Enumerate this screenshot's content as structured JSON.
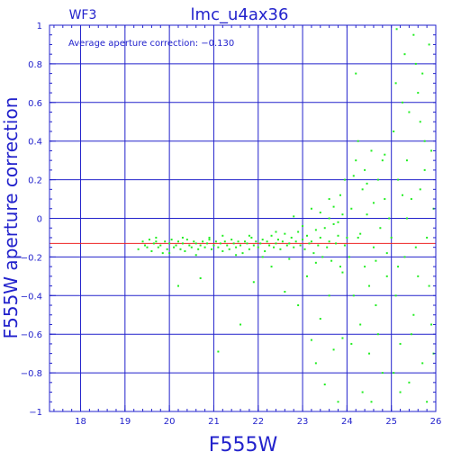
{
  "chart_data": {
    "type": "scatter",
    "title": "lmc_u4ax36",
    "chip_label": "WF3",
    "annotation": "Average aperture correction: −0.130",
    "xlabel": "F555W",
    "ylabel": "F555W aperture correction",
    "xlim": [
      17.3,
      26.0
    ],
    "ylim": [
      -1.0,
      1.0
    ],
    "x_ticks": [
      18,
      19,
      20,
      21,
      22,
      23,
      24,
      25,
      26
    ],
    "x_tick_labels": [
      "18",
      "19",
      "20",
      "21",
      "22",
      "23",
      "24",
      "25",
      "26"
    ],
    "y_ticks": [
      -1,
      -0.8,
      -0.6,
      -0.4,
      -0.2,
      0,
      0.2,
      0.4,
      0.6,
      0.8,
      1
    ],
    "y_tick_labels": [
      "−1",
      "−0.8",
      "−0.6",
      "−0.4",
      "−0.2",
      "0",
      "0.2",
      "0.4",
      "0.6",
      "0.8",
      "1"
    ],
    "grid": true,
    "average_line": -0.13,
    "colors": {
      "frame": "#2222cc",
      "grid": "#2222cc",
      "points": "#22ee22",
      "average_line": "#ee2222",
      "text": "#2222cc"
    },
    "series": [
      {
        "values": [
          [
            19.3,
            -0.16
          ],
          [
            19.4,
            -0.12
          ],
          [
            19.45,
            -0.14
          ],
          [
            19.5,
            -0.15
          ],
          [
            19.55,
            -0.11
          ],
          [
            19.6,
            -0.17
          ],
          [
            19.65,
            -0.13
          ],
          [
            19.7,
            -0.12
          ],
          [
            19.75,
            -0.15
          ],
          [
            19.8,
            -0.14
          ],
          [
            19.85,
            -0.18
          ],
          [
            19.9,
            -0.12
          ],
          [
            19.95,
            -0.16
          ],
          [
            20.0,
            -0.13
          ],
          [
            20.05,
            -0.11
          ],
          [
            20.1,
            -0.15
          ],
          [
            20.15,
            -0.14
          ],
          [
            20.2,
            -0.12
          ],
          [
            20.25,
            -0.16
          ],
          [
            20.3,
            -0.13
          ],
          [
            20.35,
            -0.17
          ],
          [
            20.4,
            -0.11
          ],
          [
            20.45,
            -0.14
          ],
          [
            20.5,
            -0.15
          ],
          [
            20.55,
            -0.12
          ],
          [
            20.6,
            -0.13
          ],
          [
            20.65,
            -0.16
          ],
          [
            20.7,
            -0.14
          ],
          [
            20.75,
            -0.12
          ],
          [
            20.8,
            -0.15
          ],
          [
            20.85,
            -0.13
          ],
          [
            20.9,
            -0.11
          ],
          [
            20.95,
            -0.16
          ],
          [
            21.0,
            -0.14
          ],
          [
            21.05,
            -0.12
          ],
          [
            21.1,
            -0.15
          ],
          [
            21.15,
            -0.13
          ],
          [
            21.2,
            -0.17
          ],
          [
            21.25,
            -0.12
          ],
          [
            21.3,
            -0.14
          ],
          [
            21.35,
            -0.16
          ],
          [
            21.4,
            -0.11
          ],
          [
            21.45,
            -0.13
          ],
          [
            21.5,
            -0.15
          ],
          [
            21.55,
            -0.12
          ],
          [
            21.6,
            -0.14
          ],
          [
            21.65,
            -0.18
          ],
          [
            21.7,
            -0.12
          ],
          [
            21.75,
            -0.13
          ],
          [
            21.8,
            -0.16
          ],
          [
            21.85,
            -0.1
          ],
          [
            21.9,
            -0.14
          ],
          [
            21.95,
            -0.12
          ],
          [
            22.0,
            -0.15
          ],
          [
            22.05,
            -0.13
          ],
          [
            22.1,
            -0.11
          ],
          [
            22.15,
            -0.17
          ],
          [
            22.2,
            -0.12
          ],
          [
            22.25,
            -0.14
          ],
          [
            22.3,
            -0.09
          ],
          [
            22.35,
            -0.15
          ],
          [
            22.4,
            -0.13
          ],
          [
            22.45,
            -0.11
          ],
          [
            22.5,
            -0.16
          ],
          [
            22.55,
            -0.12
          ],
          [
            22.6,
            -0.08
          ],
          [
            22.65,
            -0.14
          ],
          [
            22.7,
            -0.13
          ],
          [
            22.75,
            -0.1
          ],
          [
            22.8,
            -0.15
          ],
          [
            22.85,
            -0.12
          ],
          [
            22.9,
            -0.07
          ],
          [
            22.95,
            -0.14
          ],
          [
            23.0,
            -0.11
          ],
          [
            23.05,
            -0.16
          ],
          [
            23.1,
            -0.09
          ],
          [
            23.15,
            -0.13
          ],
          [
            23.2,
            -0.12
          ],
          [
            23.25,
            -0.18
          ],
          [
            23.3,
            -0.06
          ],
          [
            23.35,
            -0.14
          ],
          [
            23.4,
            -0.1
          ],
          [
            23.45,
            -0.2
          ],
          [
            23.5,
            -0.05
          ],
          [
            23.55,
            -0.15
          ],
          [
            23.6,
            -0.12
          ],
          [
            23.65,
            -0.22
          ],
          [
            23.7,
            -0.03
          ],
          [
            23.75,
            -0.13
          ],
          [
            23.8,
            -0.09
          ],
          [
            23.85,
            -0.25
          ],
          [
            23.9,
            0.02
          ],
          [
            23.95,
            -0.14
          ],
          [
            24.0,
            -0.1
          ],
          [
            19.7,
            -0.1
          ],
          [
            20.0,
            -0.18
          ],
          [
            20.3,
            -0.1
          ],
          [
            20.6,
            -0.19
          ],
          [
            20.9,
            -0.1
          ],
          [
            21.2,
            -0.09
          ],
          [
            21.5,
            -0.19
          ],
          [
            21.8,
            -0.09
          ],
          [
            22.1,
            -0.2
          ],
          [
            22.4,
            -0.07
          ],
          [
            22.7,
            -0.21
          ],
          [
            23.0,
            -0.04
          ],
          [
            23.3,
            -0.23
          ],
          [
            23.6,
            0.0
          ],
          [
            23.9,
            -0.28
          ],
          [
            20.2,
            -0.35
          ],
          [
            20.7,
            -0.31
          ],
          [
            21.1,
            -0.69
          ],
          [
            21.6,
            -0.55
          ],
          [
            21.9,
            -0.33
          ],
          [
            22.3,
            -0.25
          ],
          [
            22.6,
            -0.38
          ],
          [
            22.9,
            -0.45
          ],
          [
            23.1,
            -0.3
          ],
          [
            23.2,
            -0.63
          ],
          [
            23.3,
            -0.75
          ],
          [
            23.4,
            -0.52
          ],
          [
            23.5,
            -0.86
          ],
          [
            23.6,
            -0.4
          ],
          [
            23.7,
            -0.68
          ],
          [
            23.8,
            -0.95
          ],
          [
            23.9,
            -0.62
          ],
          [
            23.4,
            0.03
          ],
          [
            23.6,
            0.1
          ],
          [
            23.8,
            -0.02
          ],
          [
            23.85,
            0.12
          ],
          [
            23.95,
            0.2
          ],
          [
            23.2,
            0.05
          ],
          [
            22.8,
            0.01
          ],
          [
            23.7,
            0.06
          ],
          [
            24.05,
            -0.2
          ],
          [
            24.1,
            0.05
          ],
          [
            24.15,
            -0.4
          ],
          [
            24.2,
            0.3
          ],
          [
            24.25,
            -0.1
          ],
          [
            24.3,
            -0.55
          ],
          [
            24.35,
            0.15
          ],
          [
            24.4,
            -0.25
          ],
          [
            24.45,
            0.02
          ],
          [
            24.5,
            -0.7
          ],
          [
            24.55,
            0.35
          ],
          [
            24.6,
            -0.15
          ],
          [
            24.65,
            -0.45
          ],
          [
            24.7,
            0.2
          ],
          [
            24.75,
            -0.05
          ],
          [
            24.8,
            -0.8
          ],
          [
            24.85,
            0.1
          ],
          [
            24.9,
            -0.3
          ],
          [
            24.95,
            0.0
          ],
          [
            24.2,
            0.75
          ],
          [
            24.3,
            -0.08
          ],
          [
            24.4,
            0.25
          ],
          [
            24.5,
            -0.35
          ],
          [
            24.6,
            0.08
          ],
          [
            24.7,
            -0.6
          ],
          [
            24.8,
            0.3
          ],
          [
            24.9,
            -0.18
          ],
          [
            24.1,
            -0.65
          ],
          [
            24.35,
            -0.9
          ],
          [
            24.55,
            -0.95
          ],
          [
            24.25,
            0.4
          ],
          [
            24.45,
            0.18
          ],
          [
            24.65,
            -0.22
          ],
          [
            24.85,
            0.33
          ],
          [
            24.15,
            0.22
          ],
          [
            25.0,
            -0.1
          ],
          [
            25.05,
            0.45
          ],
          [
            25.1,
            -0.4
          ],
          [
            25.15,
            0.2
          ],
          [
            25.2,
            -0.65
          ],
          [
            25.25,
            0.6
          ],
          [
            25.3,
            -0.2
          ],
          [
            25.35,
            0.3
          ],
          [
            25.4,
            -0.85
          ],
          [
            25.45,
            0.1
          ],
          [
            25.5,
            -0.5
          ],
          [
            25.55,
            0.8
          ],
          [
            25.6,
            -0.3
          ],
          [
            25.65,
            0.15
          ],
          [
            25.7,
            -0.75
          ],
          [
            25.75,
            0.4
          ],
          [
            25.8,
            -0.1
          ],
          [
            25.85,
            0.9
          ],
          [
            25.9,
            -0.55
          ],
          [
            25.95,
            0.05
          ],
          [
            25.1,
            0.7
          ],
          [
            25.3,
            0.85
          ],
          [
            25.5,
            0.95
          ],
          [
            25.2,
            -0.9
          ],
          [
            25.4,
            0.55
          ],
          [
            25.6,
            0.65
          ],
          [
            25.8,
            -0.95
          ],
          [
            25.15,
            -0.25
          ],
          [
            25.35,
            0.0
          ],
          [
            25.55,
            -0.15
          ],
          [
            25.75,
            0.25
          ],
          [
            25.9,
            0.35
          ],
          [
            25.05,
            -0.8
          ],
          [
            25.25,
            0.12
          ],
          [
            25.45,
            -0.6
          ],
          [
            25.65,
            0.5
          ],
          [
            25.85,
            -0.35
          ],
          [
            25.12,
            0.98
          ],
          [
            25.7,
            0.75
          ],
          [
            25.95,
            -0.7
          ]
        ]
      }
    ]
  }
}
